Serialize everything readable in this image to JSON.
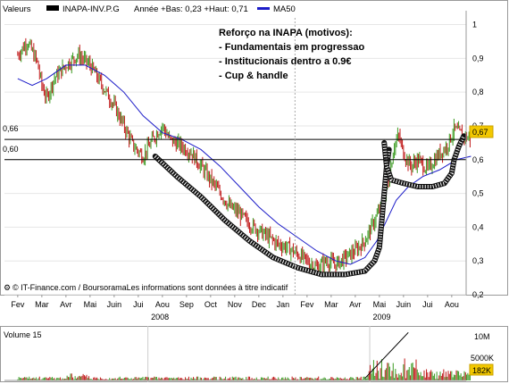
{
  "header": {
    "label": "Valeurs",
    "symbol": "INAPA-INV.P.G",
    "stats": "Année +Bas: 0,23 +Haut: 0,71",
    "ma_legend": "MA50"
  },
  "annotations": {
    "title": "Reforço na INAPA (motivos):",
    "items": [
      "- Fundamentais em progressao",
      "- Institucionais dentro a 0.9€",
      "- Cup & handle"
    ]
  },
  "levels": {
    "high_label": "0,66",
    "low_label": "0,60",
    "last_price": "0,67"
  },
  "footer": {
    "source": "© IT-Finance.com / BoursoramaLes informations sont données à titre indicatif"
  },
  "volume": {
    "title": "Volume 15",
    "labels": [
      "10M",
      "5000K",
      "182K"
    ]
  },
  "colors": {
    "up": "#3a9a20",
    "down": "#c01818",
    "ma": "#1c1cc8",
    "last_badge": "#f2c800",
    "volume_bar": "#20a020"
  },
  "chart_data": {
    "type": "candlestick",
    "title": "INAPA-INV.P.G",
    "y_ticks": [
      "1",
      "0,9",
      "0,8",
      "0,7",
      "0,6",
      "0,5",
      "0,4",
      "0,3",
      "0,2"
    ],
    "ylim": [
      0.2,
      1.02
    ],
    "months": [
      "Fev",
      "Mar",
      "Avr",
      "Mai",
      "Juin",
      "Jui",
      "Aou",
      "Sep",
      "Oct",
      "Nov",
      "Dec",
      "Jan",
      "Fev",
      "Mar",
      "Avr",
      "Mai",
      "Juin",
      "Jui",
      "Aou"
    ],
    "years": [
      "2008",
      "2009"
    ],
    "horizontal_lines": [
      0.66,
      0.6
    ],
    "price_path": [
      [
        0,
        0.91
      ],
      [
        0.4,
        0.95
      ],
      [
        0.8,
        0.89
      ],
      [
        1.0,
        0.82
      ],
      [
        1.2,
        0.78
      ],
      [
        1.5,
        0.84
      ],
      [
        2.0,
        0.88
      ],
      [
        2.5,
        0.91
      ],
      [
        3.0,
        0.88
      ],
      [
        3.5,
        0.82
      ],
      [
        4.0,
        0.76
      ],
      [
        4.4,
        0.7
      ],
      [
        4.8,
        0.64
      ],
      [
        5.2,
        0.61
      ],
      [
        5.6,
        0.66
      ],
      [
        6.0,
        0.7
      ],
      [
        6.3,
        0.66
      ],
      [
        6.8,
        0.64
      ],
      [
        7.2,
        0.62
      ],
      [
        7.6,
        0.58
      ],
      [
        8.0,
        0.54
      ],
      [
        8.4,
        0.5
      ],
      [
        8.8,
        0.46
      ],
      [
        9.2,
        0.44
      ],
      [
        9.6,
        0.41
      ],
      [
        10.0,
        0.39
      ],
      [
        10.4,
        0.37
      ],
      [
        10.8,
        0.35
      ],
      [
        11.2,
        0.34
      ],
      [
        11.6,
        0.32
      ],
      [
        12.0,
        0.3
      ],
      [
        12.4,
        0.28
      ],
      [
        12.8,
        0.3
      ],
      [
        13.2,
        0.29
      ],
      [
        13.6,
        0.31
      ],
      [
        14.0,
        0.33
      ],
      [
        14.4,
        0.36
      ],
      [
        14.8,
        0.42
      ],
      [
        15.2,
        0.48
      ],
      [
        15.4,
        0.54
      ],
      [
        15.6,
        0.64
      ],
      [
        15.8,
        0.67
      ],
      [
        16.0,
        0.62
      ],
      [
        16.3,
        0.58
      ],
      [
        16.6,
        0.6
      ],
      [
        17.0,
        0.57
      ],
      [
        17.4,
        0.61
      ],
      [
        17.8,
        0.64
      ],
      [
        18.1,
        0.69
      ],
      [
        18.5,
        0.67
      ],
      [
        18.8,
        0.66
      ]
    ],
    "ma50_path": [
      [
        0,
        0.84
      ],
      [
        0.6,
        0.82
      ],
      [
        1.2,
        0.84
      ],
      [
        2.0,
        0.88
      ],
      [
        2.8,
        0.88
      ],
      [
        3.6,
        0.85
      ],
      [
        4.4,
        0.8
      ],
      [
        5.2,
        0.73
      ],
      [
        6.0,
        0.68
      ],
      [
        6.8,
        0.66
      ],
      [
        7.6,
        0.63
      ],
      [
        8.4,
        0.58
      ],
      [
        9.2,
        0.52
      ],
      [
        10.0,
        0.46
      ],
      [
        10.8,
        0.41
      ],
      [
        11.6,
        0.37
      ],
      [
        12.4,
        0.33
      ],
      [
        13.2,
        0.3
      ],
      [
        13.8,
        0.29
      ],
      [
        14.4,
        0.31
      ],
      [
        14.9,
        0.36
      ],
      [
        15.3,
        0.42
      ],
      [
        15.7,
        0.48
      ],
      [
        16.2,
        0.52
      ],
      [
        16.8,
        0.55
      ],
      [
        17.5,
        0.57
      ],
      [
        18.2,
        0.6
      ],
      [
        18.8,
        0.61
      ]
    ],
    "cup_path": [
      [
        5.7,
        0.61
      ],
      [
        6.6,
        0.55
      ],
      [
        7.6,
        0.49
      ],
      [
        8.6,
        0.42
      ],
      [
        9.6,
        0.36
      ],
      [
        10.6,
        0.31
      ],
      [
        11.6,
        0.28
      ],
      [
        12.6,
        0.26
      ],
      [
        13.6,
        0.26
      ],
      [
        14.4,
        0.27
      ],
      [
        14.8,
        0.3
      ],
      [
        15.0,
        0.34
      ],
      [
        15.1,
        0.42
      ],
      [
        15.2,
        0.5
      ],
      [
        15.3,
        0.58
      ],
      [
        15.4,
        0.63
      ]
    ],
    "handle_path": [
      [
        15.2,
        0.65
      ],
      [
        15.3,
        0.58
      ],
      [
        15.5,
        0.54
      ],
      [
        16.0,
        0.53
      ],
      [
        16.6,
        0.52
      ],
      [
        17.2,
        0.52
      ],
      [
        17.7,
        0.53
      ],
      [
        18.0,
        0.56
      ],
      [
        18.1,
        0.6
      ],
      [
        18.3,
        0.64
      ],
      [
        18.5,
        0.67
      ]
    ],
    "volume_trend": [
      [
        14.4,
        0.5
      ],
      [
        16.2,
        11.5
      ]
    ]
  }
}
